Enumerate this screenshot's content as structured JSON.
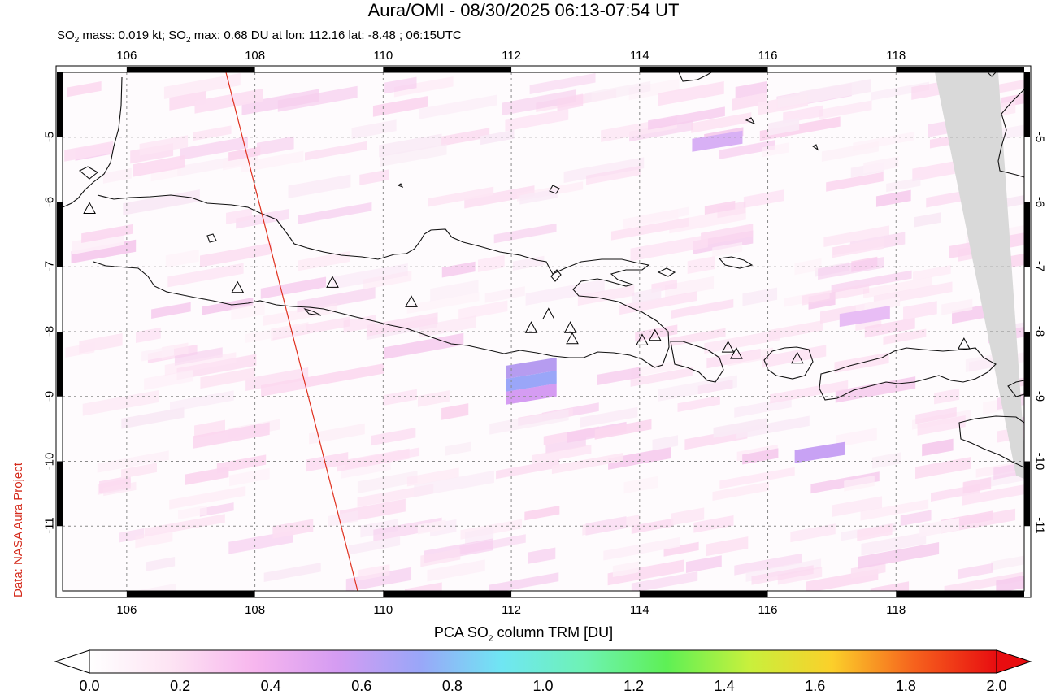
{
  "header": {
    "title": "Aura/OMI - 08/30/2025 06:13-07:54 UT",
    "subtitle_pre": "SO",
    "subtitle_sub": "2",
    "subtitle_mid": " mass: 0.019 kt; SO",
    "subtitle_sub2": "2",
    "subtitle_post": " max: 0.68 DU at lon: 112.16 lat: -8.48 ; 06:15UTC"
  },
  "credit": "Data: NASA Aura Project",
  "map": {
    "lon_range": [
      105,
      120
    ],
    "lat_range": [
      -12,
      -4
    ],
    "lon_ticks": [
      "106",
      "108",
      "110",
      "112",
      "114",
      "116",
      "118"
    ],
    "lat_ticks": [
      "-5",
      "-6",
      "-7",
      "-8",
      "-9",
      "-10",
      "-11"
    ],
    "grid": "dotted",
    "orbit_line_color": "#e0301e",
    "missing_data_color": "#d9d9d9",
    "volcano_marker": "triangle-icon",
    "volcanoes": [
      {
        "lon": 105.42,
        "lat": -6.1
      },
      {
        "lon": 107.73,
        "lat": -7.32
      },
      {
        "lon": 109.21,
        "lat": -7.24
      },
      {
        "lon": 110.44,
        "lat": -7.54
      },
      {
        "lon": 112.31,
        "lat": -7.94
      },
      {
        "lon": 112.58,
        "lat": -7.73
      },
      {
        "lon": 112.92,
        "lat": -7.94
      },
      {
        "lon": 112.95,
        "lat": -8.11
      },
      {
        "lon": 114.04,
        "lat": -8.13
      },
      {
        "lon": 114.24,
        "lat": -8.06
      },
      {
        "lon": 115.38,
        "lat": -8.24
      },
      {
        "lon": 115.51,
        "lat": -8.34
      },
      {
        "lon": 116.46,
        "lat": -8.41
      },
      {
        "lon": 119.06,
        "lat": -8.19
      }
    ],
    "so2_peak": {
      "lon": 112.16,
      "lat": -8.48,
      "value_du": 0.68
    }
  },
  "colorbar": {
    "title_pre": "PCA SO",
    "title_sub": "2",
    "title_post": " column TRM [DU]",
    "min": 0.0,
    "max": 2.0,
    "labels": [
      "0.0",
      "0.2",
      "0.4",
      "0.6",
      "0.8",
      "1.0",
      "1.2",
      "1.4",
      "1.6",
      "1.8",
      "2.0"
    ],
    "colors": [
      "#ffffff",
      "#fde3f3",
      "#f7b6ee",
      "#d59cf2",
      "#9aa6f8",
      "#6fe6f3",
      "#6ef2b4",
      "#5ef055",
      "#c8f03c",
      "#fbd02a",
      "#f6621d",
      "#e80d10"
    ]
  }
}
